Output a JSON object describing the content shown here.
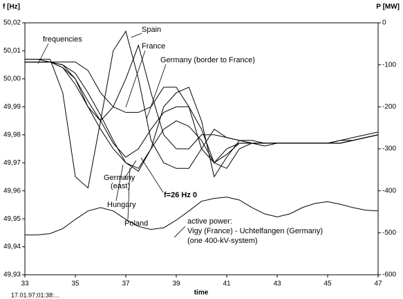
{
  "chart_data": {
    "type": "line",
    "ylabel": "f [Hz]",
    "y2label": "P [MW]",
    "xlabel": "time",
    "footnote": "17.01.97;01:38:...",
    "color": "#000000",
    "x": [
      33,
      33.5,
      34,
      34.5,
      35,
      35.5,
      36,
      36.5,
      37,
      37.5,
      38,
      38.5,
      39,
      39.5,
      40,
      40.5,
      41,
      41.5,
      42,
      42.5,
      43,
      43.5,
      44,
      44.5,
      45,
      45.5,
      46,
      46.5,
      47
    ],
    "xlim": [
      33,
      47
    ],
    "xticks": [
      33,
      35,
      37,
      39,
      41,
      43,
      45,
      47
    ],
    "ylim": [
      49.93,
      50.02
    ],
    "yticks": [
      {
        "value": 49.93,
        "label": "49,93"
      },
      {
        "value": 49.94,
        "label": "49,94"
      },
      {
        "value": 49.95,
        "label": "49,95"
      },
      {
        "value": 49.96,
        "label": "49,96"
      },
      {
        "value": 49.97,
        "label": "49,97"
      },
      {
        "value": 49.98,
        "label": "49,98"
      },
      {
        "value": 49.99,
        "label": "49,99"
      },
      {
        "value": 50.0,
        "label": "50,00"
      },
      {
        "value": 50.01,
        "label": "50,01"
      },
      {
        "value": 50.02,
        "label": "50,02"
      }
    ],
    "y2lim": [
      -600,
      0
    ],
    "y2ticks": [
      -600,
      -500,
      -400,
      -300,
      -200,
      -100,
      0
    ],
    "series": [
      {
        "values": [
          50.007,
          50.007,
          50.007,
          49.995,
          49.965,
          49.961,
          49.985,
          50.01,
          50.017,
          50.0,
          49.978,
          49.97,
          49.968,
          49.968,
          49.975,
          49.982,
          49.979,
          49.978,
          49.977,
          49.977,
          49.977,
          49.977,
          49.977,
          49.977,
          49.977,
          49.978,
          49.979,
          49.98,
          49.981
        ]
      },
      {
        "values": [
          50.006,
          50.006,
          50.006,
          50.005,
          50.0,
          49.99,
          49.985,
          49.99,
          50.0,
          50.012,
          49.995,
          49.98,
          49.975,
          49.975,
          49.98,
          49.98,
          49.979,
          49.978,
          49.978,
          49.977,
          49.977,
          49.977,
          49.977,
          49.977,
          49.977,
          49.978,
          49.978,
          49.979,
          49.98
        ]
      },
      {
        "values": [
          50.006,
          50.006,
          50.006,
          50.006,
          50.006,
          50.003,
          49.995,
          49.99,
          49.988,
          49.988,
          49.99,
          49.997,
          49.997,
          49.99,
          49.975,
          49.97,
          49.968,
          49.975,
          49.977,
          49.977,
          49.977,
          49.977,
          49.977,
          49.977,
          49.977,
          49.977,
          49.978,
          49.979,
          49.98
        ]
      },
      {
        "values": [
          50.007,
          50.007,
          50.006,
          50.005,
          50.002,
          49.995,
          49.987,
          49.978,
          49.97,
          49.967,
          49.975,
          49.99,
          49.995,
          49.997,
          49.985,
          49.965,
          49.972,
          49.978,
          49.977,
          49.976,
          49.977,
          49.977,
          49.977,
          49.977,
          49.977,
          49.977,
          49.978,
          49.979,
          49.98
        ]
      },
      {
        "values": [
          50.006,
          50.006,
          50.006,
          50.004,
          50.0,
          49.992,
          49.985,
          49.977,
          49.972,
          49.975,
          49.982,
          49.988,
          49.99,
          49.99,
          49.982,
          49.97,
          49.973,
          49.977,
          49.977,
          49.977,
          49.977,
          49.977,
          49.977,
          49.977,
          49.977,
          49.977,
          49.978,
          49.979,
          49.98
        ]
      },
      {
        "values": [
          50.006,
          50.006,
          50.006,
          50.004,
          49.998,
          49.99,
          49.982,
          49.975,
          49.97,
          49.968,
          49.975,
          49.982,
          49.985,
          49.983,
          49.978,
          49.97,
          49.975,
          49.977,
          49.977,
          49.977,
          49.977,
          49.977,
          49.977,
          49.977,
          49.977,
          49.977,
          49.978,
          49.979,
          49.98
        ]
      },
      {
        "axis": "y2",
        "values": [
          -505,
          -505,
          -502,
          -490,
          -468,
          -448,
          -440,
          -448,
          -468,
          -485,
          -492,
          -488,
          -470,
          -448,
          -425,
          -418,
          -415,
          -422,
          -440,
          -455,
          -462,
          -455,
          -440,
          -430,
          -426,
          -432,
          -440,
          -446,
          -448
        ]
      }
    ],
    "annotations": [
      "frequencies",
      "Spain",
      "France",
      "Germany (border to France)",
      "Germany",
      "(east)",
      "Hungary",
      "Poland",
      "f=26 Hz 0",
      "active power:",
      "Vigy (France) - Uchtelfangen (Germany)",
      "(one 400-kV-system)"
    ]
  }
}
